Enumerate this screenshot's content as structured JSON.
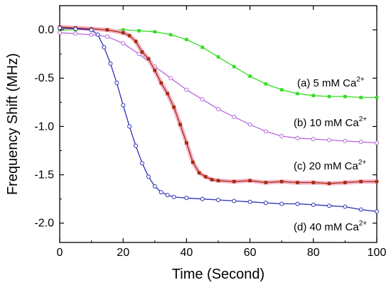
{
  "chart_data": {
    "type": "line",
    "title": "",
    "xlabel": "Time (Second)",
    "ylabel": "Frequency Shift (MHz)",
    "xlim": [
      0,
      100
    ],
    "ylim": [
      -2.2,
      0.25
    ],
    "xticks": [
      0,
      20,
      40,
      60,
      80,
      100
    ],
    "yticks": [
      0.0,
      -0.5,
      -1.0,
      -1.5,
      -2.0
    ],
    "xtick_labels": [
      "0",
      "20",
      "40",
      "60",
      "80",
      "100"
    ],
    "ytick_labels": [
      "0.0",
      "-0.5",
      "-1.0",
      "-1.5",
      "-2.0"
    ],
    "grid": false,
    "legend": "none",
    "annotations": [
      {
        "prefix": "(a) 5 mM Ca",
        "sup": "2+",
        "series": "a"
      },
      {
        "prefix": "(b) 10 mM Ca",
        "sup": "2+",
        "series": "b"
      },
      {
        "prefix": "(c) 20 mM Ca",
        "sup": "2+",
        "series": "c"
      },
      {
        "prefix": "(d) 40 mM Ca",
        "sup": "2+",
        "series": "d"
      }
    ],
    "series": [
      {
        "id": "a",
        "color": "#33dd22",
        "marker": "square-filled",
        "x": [
          0,
          5,
          10,
          15,
          20,
          25,
          30,
          35,
          40,
          45,
          50,
          55,
          60,
          65,
          70,
          75,
          80,
          85,
          90,
          95,
          100
        ],
        "y": [
          0.0,
          0.0,
          0.01,
          0.0,
          0.0,
          -0.01,
          -0.02,
          -0.05,
          -0.1,
          -0.18,
          -0.28,
          -0.38,
          -0.48,
          -0.56,
          -0.62,
          -0.66,
          -0.68,
          -0.69,
          -0.69,
          -0.7,
          -0.7
        ]
      },
      {
        "id": "b",
        "color": "#b865dd",
        "marker": "circle-open",
        "x": [
          0,
          5,
          10,
          15,
          20,
          25,
          30,
          35,
          40,
          45,
          50,
          55,
          60,
          65,
          70,
          75,
          80,
          85,
          90,
          95,
          100
        ],
        "y": [
          -0.03,
          -0.04,
          -0.05,
          -0.07,
          -0.14,
          -0.25,
          -0.38,
          -0.5,
          -0.62,
          -0.72,
          -0.82,
          -0.9,
          -0.98,
          -1.05,
          -1.1,
          -1.12,
          -1.13,
          -1.14,
          -1.15,
          -1.16,
          -1.17
        ]
      },
      {
        "id": "c",
        "color": "#a52a10",
        "marker": "square-filled",
        "x": [
          0,
          5,
          10,
          15,
          20,
          22,
          24,
          26,
          28,
          30,
          32,
          34,
          36,
          38,
          40,
          42,
          44,
          46,
          48,
          50,
          55,
          60,
          65,
          70,
          75,
          80,
          85,
          90,
          95,
          100
        ],
        "y": [
          0.03,
          0.02,
          0.01,
          0.0,
          -0.03,
          -0.06,
          -0.12,
          -0.23,
          -0.3,
          -0.42,
          -0.55,
          -0.66,
          -0.8,
          -0.98,
          -1.17,
          -1.37,
          -1.48,
          -1.52,
          -1.55,
          -1.56,
          -1.57,
          -1.56,
          -1.58,
          -1.57,
          -1.58,
          -1.58,
          -1.59,
          -1.58,
          -1.57,
          -1.57
        ]
      },
      {
        "id": "d",
        "color": "#2b2fb0",
        "marker": "circle-open",
        "x": [
          0,
          5,
          10,
          12,
          14,
          16,
          18,
          20,
          22,
          24,
          26,
          28,
          30,
          32,
          34,
          36,
          40,
          45,
          50,
          55,
          60,
          65,
          70,
          75,
          80,
          85,
          90,
          95,
          100
        ],
        "y": [
          0.02,
          0.01,
          0.0,
          -0.05,
          -0.18,
          -0.35,
          -0.55,
          -0.78,
          -1.0,
          -1.2,
          -1.38,
          -1.52,
          -1.62,
          -1.68,
          -1.71,
          -1.73,
          -1.74,
          -1.75,
          -1.76,
          -1.77,
          -1.78,
          -1.79,
          -1.8,
          -1.8,
          -1.81,
          -1.82,
          -1.83,
          -1.86,
          -1.88
        ]
      }
    ]
  }
}
